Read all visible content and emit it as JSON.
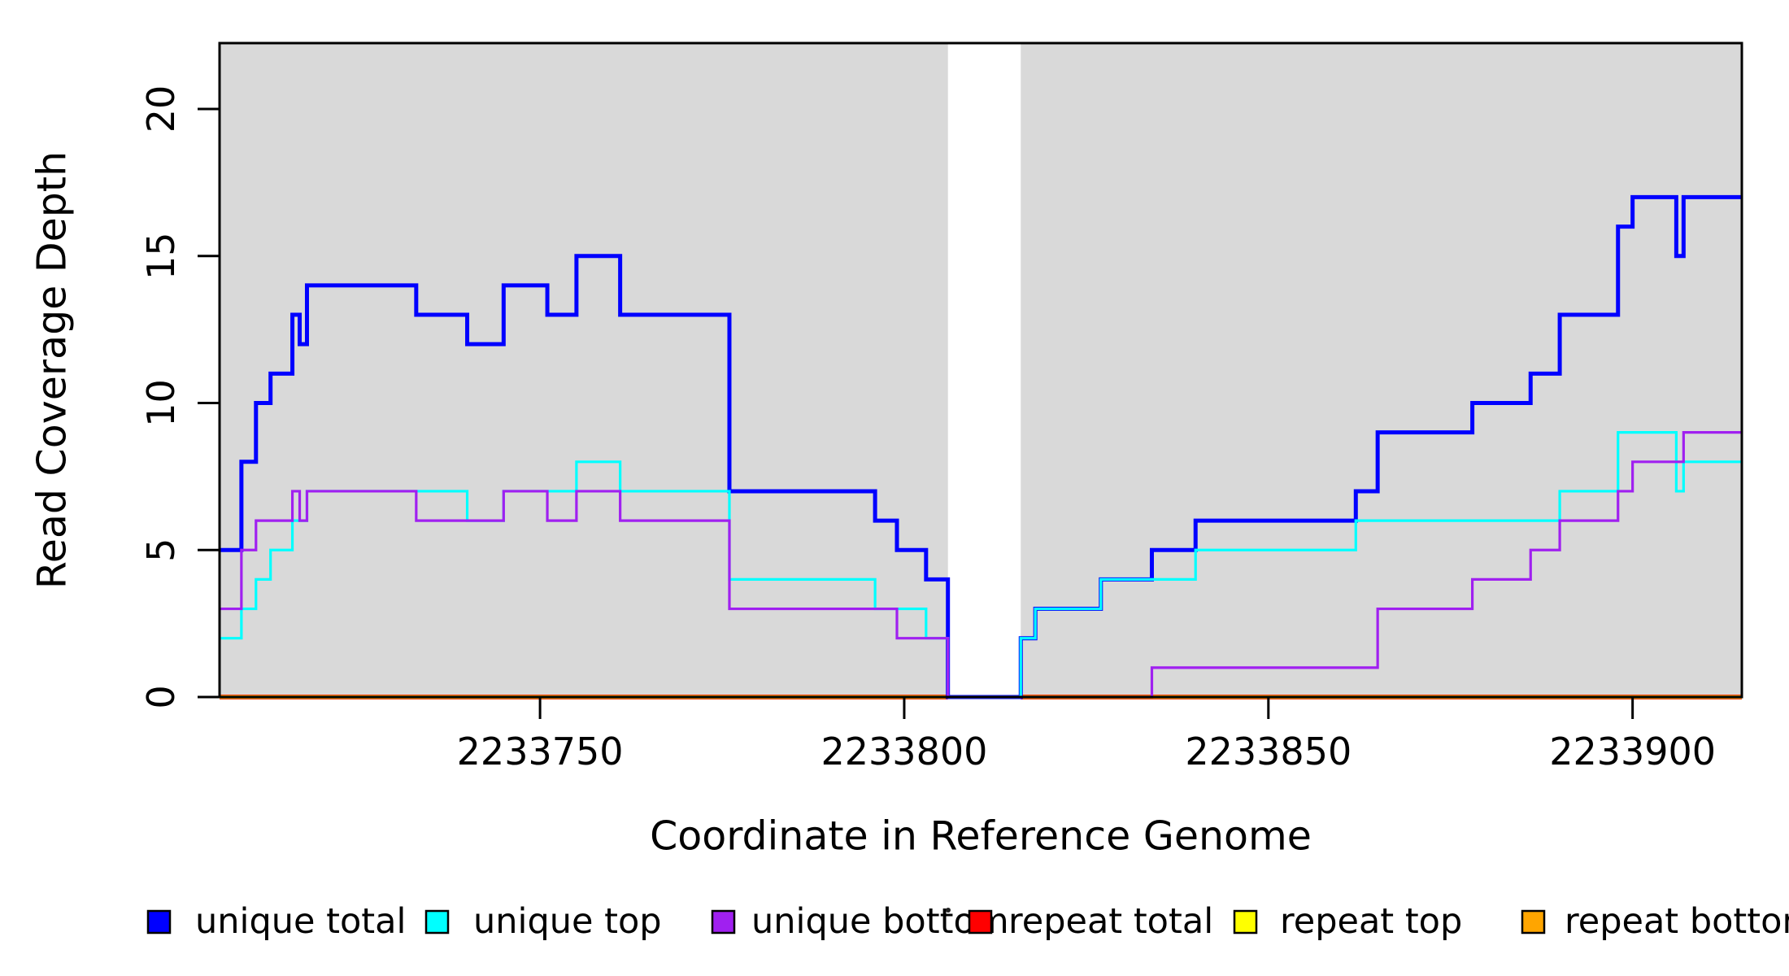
{
  "figure": {
    "kind": "R-style read coverage step plot",
    "background_color": "#ffffff",
    "panel_color": "#d9d9d9",
    "axis_color": "#000000"
  },
  "chart_data": {
    "type": "line",
    "subtype": "step",
    "title": "",
    "xlabel": "Coordinate in Reference Genome",
    "ylabel": "Read Coverage Depth",
    "xlim": [
      2233706,
      2233915
    ],
    "ylim": [
      0,
      22.24
    ],
    "grid": false,
    "x_ticks": [
      {
        "value": 2233750,
        "label": "2233750"
      },
      {
        "value": 2233800,
        "label": "2233800"
      },
      {
        "value": 2233850,
        "label": "2233850"
      },
      {
        "value": 2233900,
        "label": "2233900"
      }
    ],
    "y_ticks": [
      {
        "value": 0,
        "label": "0"
      },
      {
        "value": 5,
        "label": "5"
      },
      {
        "value": 10,
        "label": "10"
      },
      {
        "value": 15,
        "label": "15"
      },
      {
        "value": 20,
        "label": "20"
      }
    ],
    "background_shaded_regions": [
      [
        2233706,
        2233806
      ],
      [
        2233816,
        2233915
      ]
    ],
    "coverage_gap_region": [
      2233806,
      2233816
    ],
    "series": [
      {
        "name": "repeat total",
        "color": "#ff0000",
        "line_width": 6,
        "zero_over_shaded_only": true,
        "value": 0
      },
      {
        "name": "repeat top",
        "color": "#ffff00",
        "line_width": 4.6,
        "zero_over_shaded_only": true,
        "value": 0
      },
      {
        "name": "repeat bottom",
        "color": "#ffa500",
        "line_width": 3.4,
        "zero_over_shaded_only": true,
        "value": 0
      },
      {
        "name": "unique total",
        "color": "#0000ff",
        "line_width": 5,
        "end": 2233915,
        "steps": [
          [
            2233706,
            5
          ],
          [
            2233709,
            8
          ],
          [
            2233711,
            10
          ],
          [
            2233713,
            11
          ],
          [
            2233716,
            13
          ],
          [
            2233717,
            12
          ],
          [
            2233718,
            14
          ],
          [
            2233733,
            13
          ],
          [
            2233740,
            12
          ],
          [
            2233745,
            14
          ],
          [
            2233751,
            13
          ],
          [
            2233755,
            15
          ],
          [
            2233761,
            13
          ],
          [
            2233776,
            7
          ],
          [
            2233796,
            6
          ],
          [
            2233799,
            5
          ],
          [
            2233803,
            4
          ],
          [
            2233806,
            0
          ],
          [
            2233816,
            2
          ],
          [
            2233818,
            3
          ],
          [
            2233827,
            4
          ],
          [
            2233834,
            5
          ],
          [
            2233840,
            6
          ],
          [
            2233862,
            7
          ],
          [
            2233865,
            9
          ],
          [
            2233878,
            10
          ],
          [
            2233886,
            11
          ],
          [
            2233890,
            13
          ],
          [
            2233898,
            16
          ],
          [
            2233900,
            17
          ],
          [
            2233906,
            15
          ],
          [
            2233907,
            17
          ]
        ]
      },
      {
        "name": "unique top",
        "color": "#00ffff",
        "line_width": 3.2,
        "end": 2233915,
        "steps": [
          [
            2233706,
            2
          ],
          [
            2233709,
            3
          ],
          [
            2233711,
            4
          ],
          [
            2233713,
            5
          ],
          [
            2233716,
            6
          ],
          [
            2233718,
            7
          ],
          [
            2233740,
            6
          ],
          [
            2233745,
            7
          ],
          [
            2233755,
            8
          ],
          [
            2233761,
            7
          ],
          [
            2233776,
            4
          ],
          [
            2233796,
            3
          ],
          [
            2233803,
            2
          ],
          [
            2233806,
            0
          ],
          [
            2233816,
            2
          ],
          [
            2233818,
            3
          ],
          [
            2233827,
            4
          ],
          [
            2233840,
            5
          ],
          [
            2233862,
            6
          ],
          [
            2233890,
            7
          ],
          [
            2233898,
            9
          ],
          [
            2233906,
            7
          ],
          [
            2233907,
            8
          ]
        ]
      },
      {
        "name": "unique bottom",
        "color": "#a020f0",
        "line_width": 3.2,
        "end": 2233915,
        "steps": [
          [
            2233706,
            3
          ],
          [
            2233709,
            5
          ],
          [
            2233711,
            6
          ],
          [
            2233716,
            7
          ],
          [
            2233717,
            6
          ],
          [
            2233718,
            7
          ],
          [
            2233733,
            6
          ],
          [
            2233745,
            7
          ],
          [
            2233751,
            6
          ],
          [
            2233755,
            7
          ],
          [
            2233761,
            6
          ],
          [
            2233776,
            3
          ],
          [
            2233799,
            2
          ],
          [
            2233806,
            0
          ],
          [
            2233834,
            1
          ],
          [
            2233865,
            3
          ],
          [
            2233878,
            4
          ],
          [
            2233886,
            5
          ],
          [
            2233890,
            6
          ],
          [
            2233898,
            7
          ],
          [
            2233900,
            8
          ],
          [
            2233907,
            9
          ]
        ]
      }
    ],
    "legend_position": "bottom"
  },
  "legend": {
    "items": [
      {
        "label": "unique total",
        "color": "#0000ff"
      },
      {
        "label": "unique top",
        "color": "#00ffff"
      },
      {
        "label": "unique bottom",
        "color": "#a020f0"
      },
      {
        "label": "repeat total",
        "color": "#ff0000"
      },
      {
        "label": "repeat top",
        "color": "#ffff00"
      },
      {
        "label": "repeat bottom",
        "color": "#ffa500"
      }
    ],
    "separator_dot_color": "#222222"
  }
}
